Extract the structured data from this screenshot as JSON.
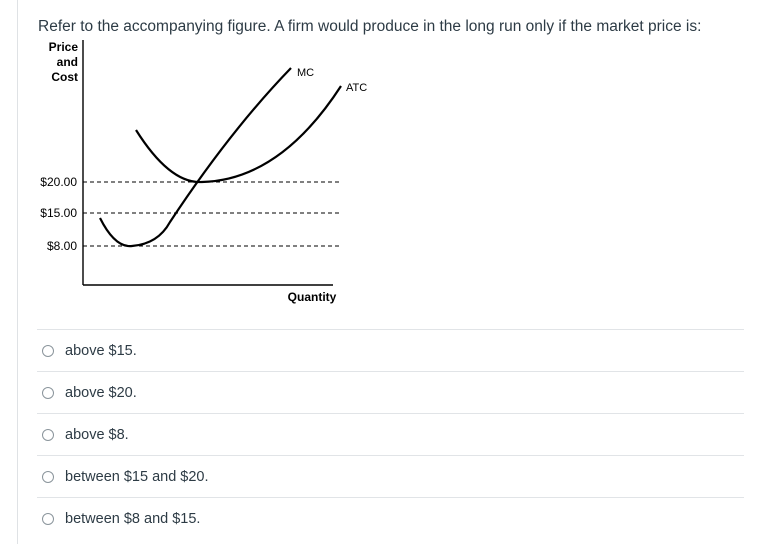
{
  "question": {
    "text": "Refer to the accompanying figure. A firm would produce in the long run only if the market price is:"
  },
  "figure": {
    "y_axis_label": [
      "Price",
      "and",
      "Cost"
    ],
    "x_axis_label": "Quantity",
    "price_levels": [
      {
        "label": "$20.00",
        "value": 20
      },
      {
        "label": "$15.00",
        "value": 15
      },
      {
        "label": "$8.00",
        "value": 8
      }
    ],
    "curves": [
      {
        "name": "MC"
      },
      {
        "name": "ATC"
      }
    ]
  },
  "answers": [
    {
      "label": "above $15."
    },
    {
      "label": "above $20."
    },
    {
      "label": "above $8."
    },
    {
      "label": "between $15 and $20."
    },
    {
      "label": "between $8 and $15."
    }
  ]
}
